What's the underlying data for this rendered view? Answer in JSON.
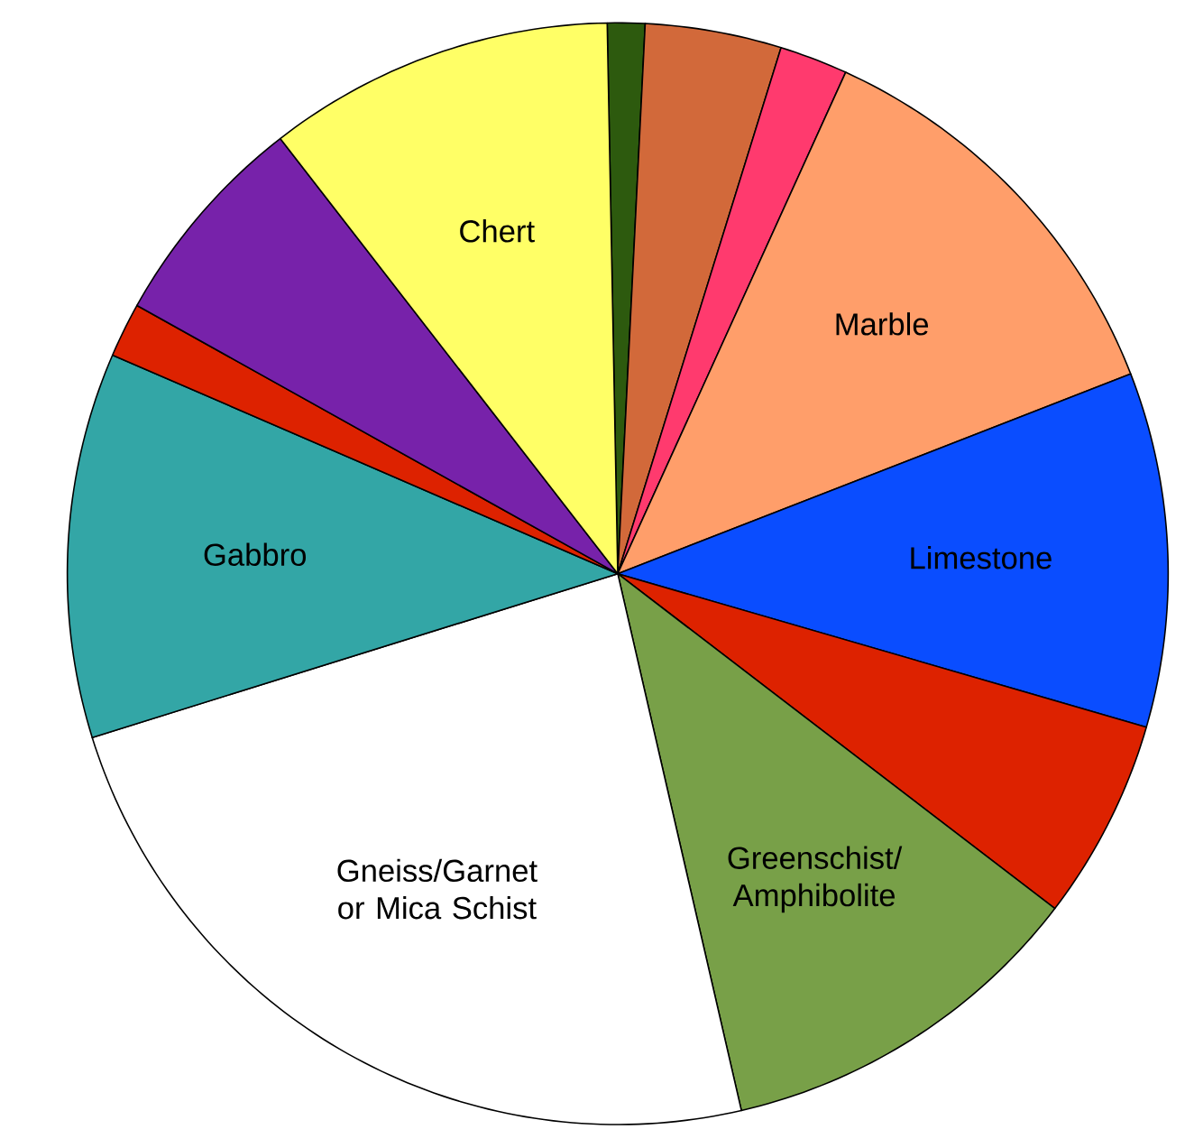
{
  "chart_data": {
    "type": "pie",
    "categories": [
      null,
      null,
      null,
      "Marble",
      "Limestone",
      null,
      "Greenschist/ Amphibolite",
      "Gneiss/Garnet or Mica Schist",
      "Gabbro",
      null,
      null,
      "Chert"
    ],
    "values": [
      1.1,
      4.0,
      2.0,
      12.3,
      10.4,
      5.9,
      11.0,
      23.8,
      11.3,
      1.6,
      6.4,
      10.2
    ],
    "colors": [
      "#2d5a0e",
      "#d2693a",
      "#ff3a6e",
      "#ff9e6a",
      "#0a4dff",
      "#dd2200",
      "#78a048",
      "#ffffff",
      "#33a6a6",
      "#dd2200",
      "#7722aa",
      "#ffff66"
    ]
  }
}
